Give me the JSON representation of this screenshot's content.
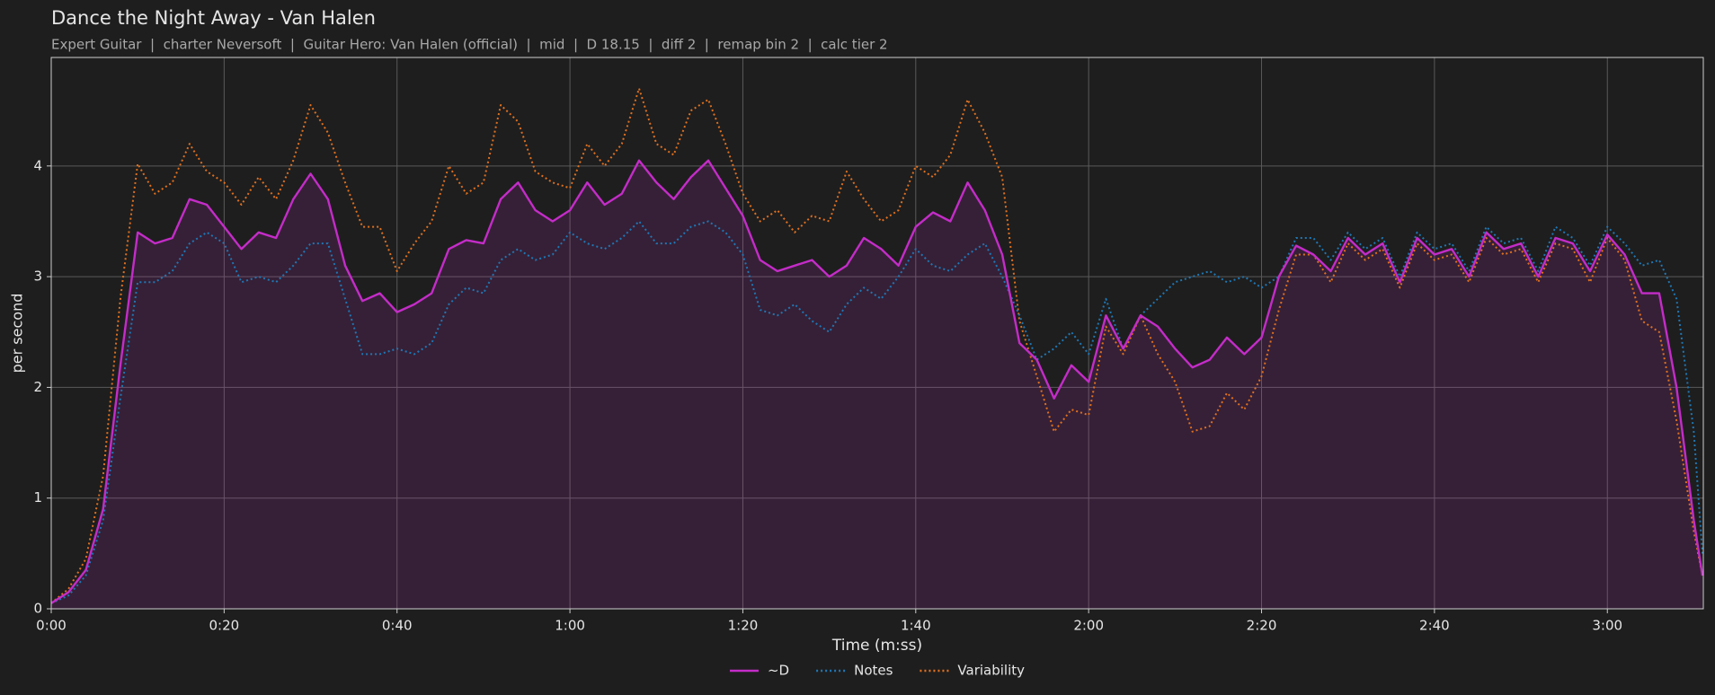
{
  "chart_data": {
    "type": "line",
    "title": "Dance the Night Away - Van Halen",
    "subtitle": "Expert Guitar  |  charter Neversoft  |  Guitar Hero: Van Halen (official)  |  mid  |  D 18.15  |  diff 2  |  remap bin 2  |  calc tier 2",
    "x_label": "Time (m:ss)",
    "y_label": "per second",
    "x": [
      0,
      2,
      4,
      6,
      8,
      10,
      12,
      14,
      16,
      18,
      20,
      22,
      24,
      26,
      28,
      30,
      32,
      34,
      36,
      38,
      40,
      42,
      44,
      46,
      48,
      50,
      52,
      54,
      56,
      58,
      60,
      62,
      64,
      66,
      68,
      70,
      72,
      74,
      76,
      78,
      80,
      82,
      84,
      86,
      88,
      90,
      92,
      94,
      96,
      98,
      100,
      102,
      104,
      106,
      108,
      110,
      112,
      114,
      116,
      118,
      120,
      122,
      124,
      126,
      128,
      130,
      132,
      134,
      136,
      138,
      140,
      142,
      144,
      146,
      148,
      150,
      152,
      154,
      156,
      158,
      160,
      162,
      164,
      166,
      168,
      170,
      172,
      174,
      176,
      178,
      180,
      182,
      184,
      186,
      188,
      190,
      191
    ],
    "series": [
      {
        "name": "~D",
        "color": "#c42cc8",
        "style": "solid",
        "fill": true,
        "values": [
          0.05,
          0.15,
          0.35,
          0.9,
          2.2,
          3.4,
          3.3,
          3.35,
          3.7,
          3.65,
          3.45,
          3.25,
          3.4,
          3.35,
          3.7,
          3.93,
          3.7,
          3.1,
          2.78,
          2.85,
          2.68,
          2.75,
          2.85,
          3.25,
          3.33,
          3.3,
          3.7,
          3.85,
          3.6,
          3.5,
          3.6,
          3.85,
          3.65,
          3.75,
          4.05,
          3.85,
          3.7,
          3.9,
          4.05,
          3.8,
          3.55,
          3.15,
          3.05,
          3.1,
          3.15,
          3.0,
          3.1,
          3.35,
          3.25,
          3.1,
          3.45,
          3.58,
          3.5,
          3.85,
          3.6,
          3.2,
          2.4,
          2.25,
          1.9,
          2.2,
          2.05,
          2.65,
          2.35,
          2.65,
          2.55,
          2.35,
          2.18,
          2.25,
          2.45,
          2.3,
          2.45,
          3.0,
          3.28,
          3.2,
          3.05,
          3.35,
          3.2,
          3.3,
          2.95,
          3.35,
          3.2,
          3.25,
          3.0,
          3.4,
          3.25,
          3.3,
          3.0,
          3.35,
          3.3,
          3.05,
          3.38,
          3.2,
          2.85,
          2.85,
          2.0,
          0.8,
          0.3
        ]
      },
      {
        "name": "Notes",
        "color": "#1f77b4",
        "style": "dotted",
        "values": [
          0.05,
          0.12,
          0.3,
          0.8,
          1.9,
          2.95,
          2.95,
          3.05,
          3.3,
          3.4,
          3.3,
          2.95,
          3.0,
          2.95,
          3.1,
          3.3,
          3.3,
          2.8,
          2.3,
          2.3,
          2.35,
          2.3,
          2.4,
          2.75,
          2.9,
          2.85,
          3.15,
          3.25,
          3.15,
          3.2,
          3.4,
          3.3,
          3.25,
          3.35,
          3.5,
          3.3,
          3.3,
          3.45,
          3.5,
          3.4,
          3.2,
          2.7,
          2.65,
          2.75,
          2.6,
          2.5,
          2.75,
          2.9,
          2.8,
          3.0,
          3.25,
          3.1,
          3.05,
          3.2,
          3.3,
          3.0,
          2.65,
          2.25,
          2.35,
          2.5,
          2.3,
          2.8,
          2.35,
          2.65,
          2.8,
          2.95,
          3.0,
          3.05,
          2.95,
          3.0,
          2.9,
          3.0,
          3.35,
          3.35,
          3.15,
          3.4,
          3.25,
          3.35,
          3.0,
          3.4,
          3.25,
          3.3,
          3.05,
          3.45,
          3.3,
          3.35,
          3.05,
          3.45,
          3.35,
          3.1,
          3.45,
          3.3,
          3.1,
          3.15,
          2.8,
          1.6,
          0.5
        ]
      },
      {
        "name": "Variability",
        "color": "#e0701e",
        "style": "dotted",
        "values": [
          0.05,
          0.18,
          0.45,
          1.2,
          2.8,
          4.02,
          3.75,
          3.85,
          4.2,
          3.95,
          3.85,
          3.65,
          3.9,
          3.7,
          4.05,
          4.55,
          4.3,
          3.85,
          3.45,
          3.45,
          3.05,
          3.3,
          3.5,
          4.0,
          3.75,
          3.85,
          4.55,
          4.4,
          3.95,
          3.85,
          3.8,
          4.2,
          4.0,
          4.2,
          4.7,
          4.2,
          4.1,
          4.5,
          4.6,
          4.2,
          3.75,
          3.5,
          3.6,
          3.4,
          3.55,
          3.5,
          3.95,
          3.7,
          3.5,
          3.6,
          4.0,
          3.9,
          4.1,
          4.6,
          4.3,
          3.9,
          2.6,
          2.1,
          1.6,
          1.8,
          1.75,
          2.55,
          2.3,
          2.65,
          2.3,
          2.05,
          1.6,
          1.65,
          1.95,
          1.8,
          2.1,
          2.7,
          3.2,
          3.2,
          2.95,
          3.3,
          3.15,
          3.25,
          2.9,
          3.3,
          3.15,
          3.2,
          2.95,
          3.35,
          3.2,
          3.25,
          2.95,
          3.3,
          3.25,
          2.95,
          3.35,
          3.15,
          2.6,
          2.5,
          1.7,
          0.7,
          0.3
        ]
      }
    ],
    "xlim": [
      0,
      191.1
    ],
    "ylim": [
      0,
      4.98
    ],
    "xticks": [
      {
        "value": 0,
        "label": "0:00"
      },
      {
        "value": 20,
        "label": "0:20"
      },
      {
        "value": 40,
        "label": "0:40"
      },
      {
        "value": 60,
        "label": "1:00"
      },
      {
        "value": 80,
        "label": "1:20"
      },
      {
        "value": 100,
        "label": "1:40"
      },
      {
        "value": 120,
        "label": "2:00"
      },
      {
        "value": 140,
        "label": "2:20"
      },
      {
        "value": 160,
        "label": "2:40"
      },
      {
        "value": 180,
        "label": "3:00"
      }
    ],
    "yticks": [
      0,
      1,
      2,
      3,
      4
    ],
    "grid": true,
    "legend": "bottom"
  }
}
